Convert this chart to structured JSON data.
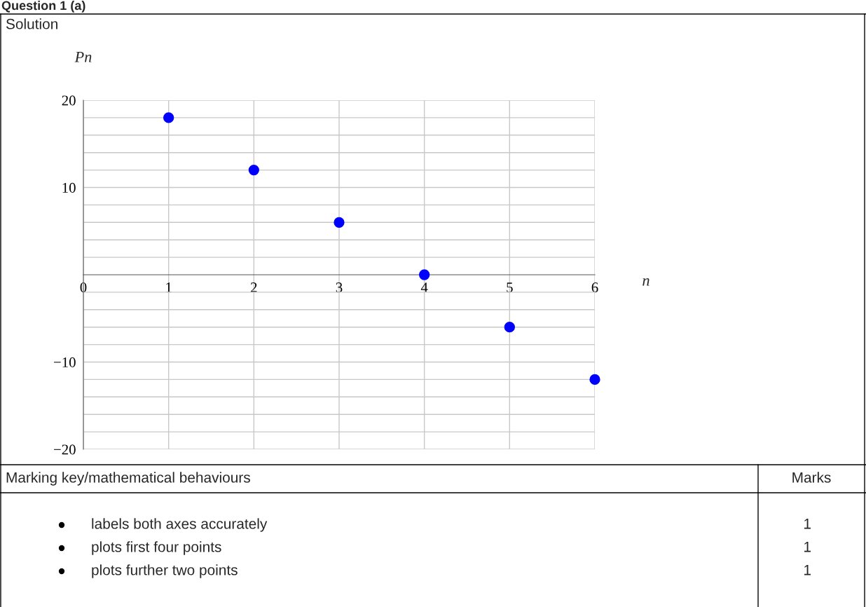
{
  "chart_data": {
    "type": "scatter",
    "title": "Question 1 (a)",
    "xlabel": "n",
    "ylabel": "Pn",
    "x": [
      1,
      2,
      3,
      4,
      5,
      6
    ],
    "series": [
      {
        "color": "#0000ff",
        "values": [
          18,
          12,
          6,
          0,
          -6,
          -12
        ]
      }
    ],
    "marker": "circle",
    "xlim": [
      0,
      6
    ],
    "ylim": [
      -20,
      20
    ],
    "xticks": [
      {
        "value": 0,
        "label": "0"
      },
      1,
      2,
      3,
      4,
      5,
      6
    ],
    "yticks": [
      {
        "value": -20,
        "label": "−20"
      },
      {
        "value": -18,
        "label": null
      },
      {
        "value": -16,
        "label": null
      },
      {
        "value": -14,
        "label": null
      },
      {
        "value": -12,
        "label": null
      },
      {
        "value": -10,
        "label": "−10"
      },
      {
        "value": -8,
        "label": null
      },
      {
        "value": -6,
        "label": null
      },
      {
        "value": -4,
        "label": null
      },
      {
        "value": -2,
        "label": null
      },
      {
        "value": 2,
        "label": null
      },
      {
        "value": 4,
        "label": null
      },
      {
        "value": 6,
        "label": null
      },
      {
        "value": 8,
        "label": null
      },
      10,
      {
        "value": 12,
        "label": null
      },
      {
        "value": 14,
        "label": null
      },
      {
        "value": 16,
        "label": null
      },
      {
        "value": 18,
        "label": null
      },
      20
    ],
    "grid": true,
    "annotations": [
      "Solution",
      "Marking key/mathematical behaviours",
      "Marks",
      "labels both axes accurately",
      "1",
      "plots first four points",
      "1",
      "plots further two points",
      "1"
    ]
  }
}
